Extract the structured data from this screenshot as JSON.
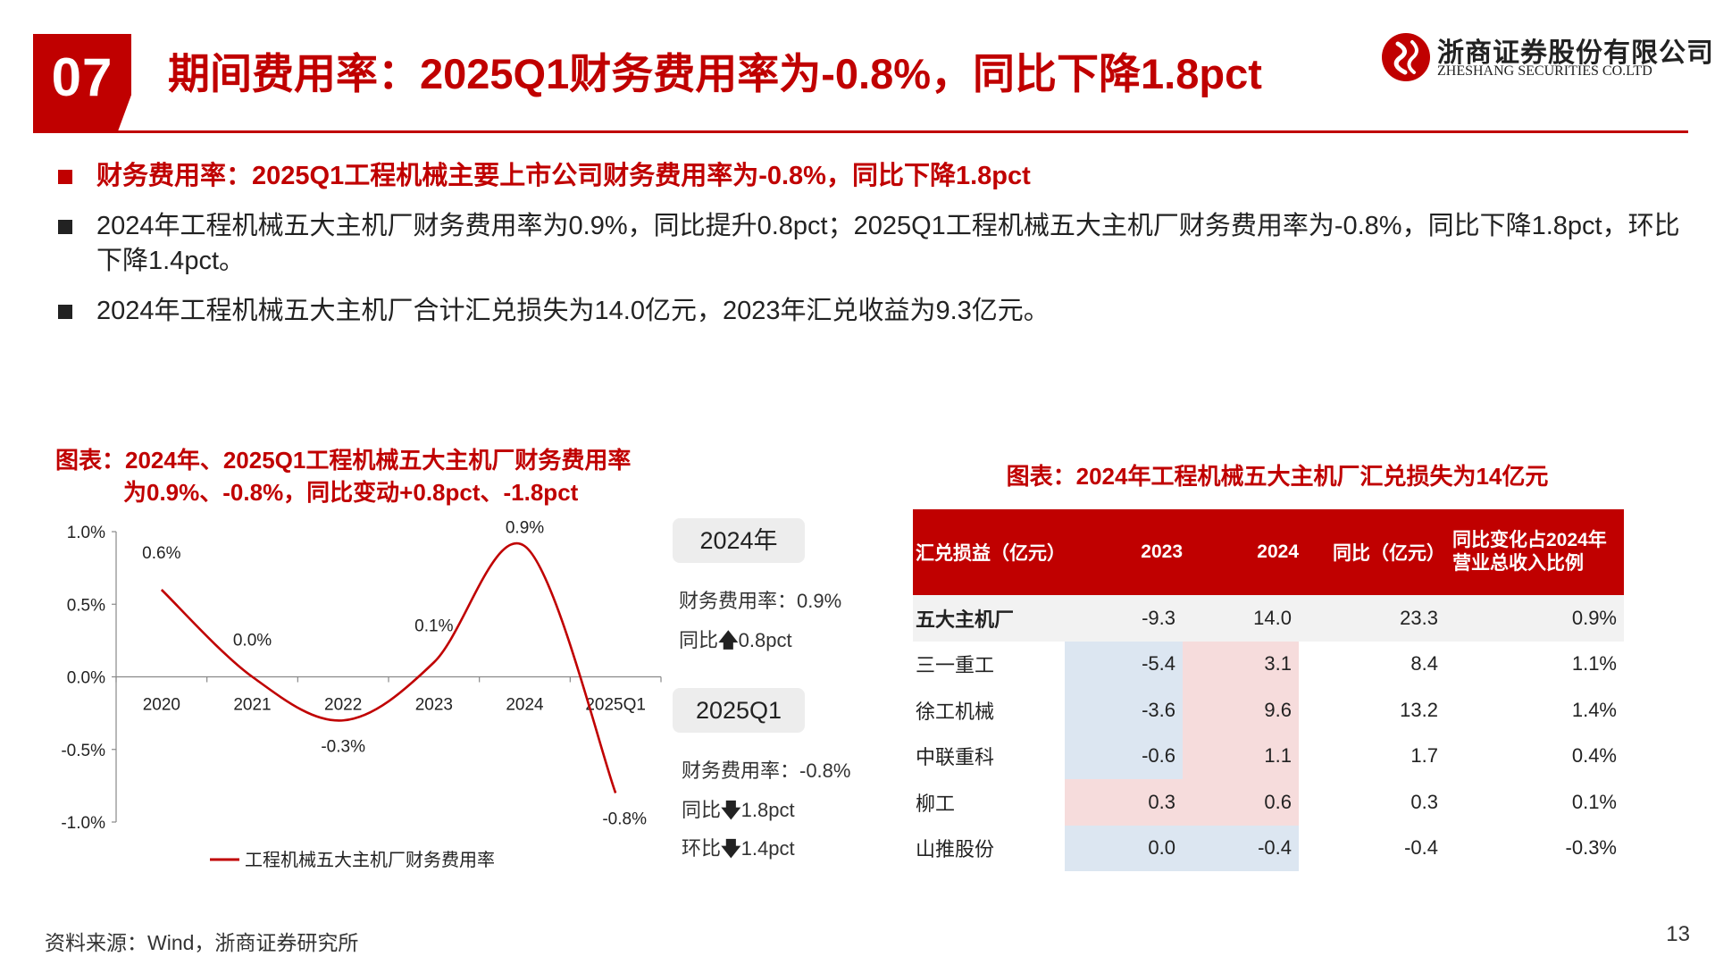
{
  "header": {
    "section_number": "07",
    "title": "期间费用率：2025Q1财务费用率为-0.8%，同比下降1.8pct",
    "logo_cn": "浙商证券股份有限公司",
    "logo_en": "ZHESHANG SECURITIES CO.LTD",
    "brand_color": "#c00000"
  },
  "bullets": [
    "财务费用率：2025Q1工程机械主要上市公司财务费用率为-0.8%，同比下降1.8pct",
    "2024年工程机械五大主机厂财务费用率为0.9%，同比提升0.8pct；2025Q1工程机械五大主机厂财务费用率为-0.8%，同比下降1.8pct，环比下降1.4pct。",
    "2024年工程机械五大主机厂合计汇兑损失为14.0亿元，2023年汇兑收益为9.3亿元。"
  ],
  "left_chart": {
    "title_line1": "图表：2024年、2025Q1工程机械五大主机厂财务费用率",
    "title_line2": "为0.9%、-0.8%，同比变动+0.8pct、-1.8pct"
  },
  "chart_data": [
    {
      "type": "line",
      "categories": [
        "2020",
        "2021",
        "2022",
        "2023",
        "2024",
        "2025Q1"
      ],
      "series": [
        {
          "name": "工程机械五大主机厂财务费用率",
          "values": [
            0.6,
            0.0,
            -0.3,
            0.1,
            0.9,
            -0.8
          ],
          "data_labels": [
            "0.6%",
            "0.0%",
            "-0.3%",
            "0.1%",
            "0.9%",
            "-0.8%"
          ],
          "color": "#c00000",
          "smooth": true
        }
      ],
      "ylim": [
        -1.0,
        1.0
      ],
      "yticks": [
        1.0,
        0.5,
        0.0,
        -0.5,
        -1.0
      ],
      "ytick_labels": [
        "1.0%",
        "0.5%",
        "0.0%",
        "-0.5%",
        "-1.0%"
      ],
      "grid": false,
      "legend": "bottom"
    },
    {
      "type": "table",
      "title": "图表：2024年工程机械五大主机厂汇兑损失为14亿元",
      "columns": [
        "汇兑损益（亿元）",
        "2023",
        "2024",
        "同比（亿元）",
        "同比变化占2024年营业总收入比例"
      ],
      "rows": [
        [
          "五大主机厂",
          "-9.3",
          "14.0",
          "23.3",
          "0.9%"
        ],
        [
          "三一重工",
          "-5.4",
          "3.1",
          "8.4",
          "1.1%"
        ],
        [
          "徐工机械",
          "-3.6",
          "9.6",
          "13.2",
          "1.4%"
        ],
        [
          "中联重科",
          "-0.6",
          "1.1",
          "1.7",
          "0.4%"
        ],
        [
          "柳工",
          "0.3",
          "0.6",
          "0.3",
          "0.1%"
        ],
        [
          "山推股份",
          "0.0",
          "-0.4",
          "-0.4",
          "-0.3%"
        ]
      ]
    }
  ],
  "callouts": {
    "y2024": {
      "label": "2024年",
      "rate_line": "财务费用率：0.9%",
      "yoy_prefix": "同比",
      "yoy_arrow": "🡅",
      "yoy_value": "0.8pct"
    },
    "q2025": {
      "label": "2025Q1",
      "rate_line": "财务费用率：-0.8%",
      "yoy_prefix": "同比",
      "yoy_arrow": "🡇",
      "yoy_value": "1.8pct",
      "qoq_prefix": "环比",
      "qoq_arrow": "🡇",
      "qoq_value": "1.4pct"
    }
  },
  "table_colors": {
    "negative_2023": "#dce6f1",
    "positive_2023": "#f6dcdc",
    "positive_2024": "#f6dcdc",
    "negative_2024": "#dce6f1"
  },
  "footer": {
    "source": "资料来源：Wind，浙商证券研究所",
    "page": "13"
  }
}
